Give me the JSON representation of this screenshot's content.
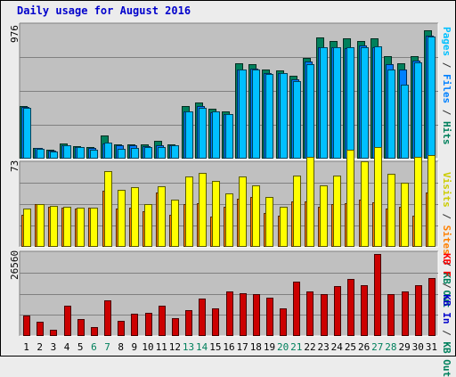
{
  "chart_data": {
    "type": "bar",
    "title": "Daily usage for August 2016",
    "categories": [
      "1",
      "2",
      "3",
      "4",
      "5",
      "6",
      "7",
      "8",
      "9",
      "10",
      "11",
      "12",
      "13",
      "14",
      "15",
      "16",
      "17",
      "18",
      "19",
      "20",
      "21",
      "22",
      "23",
      "24",
      "25",
      "26",
      "27",
      "28",
      "29",
      "30",
      "31"
    ],
    "weekend_days": [
      "6",
      "7",
      "13",
      "14",
      "20",
      "21",
      "27",
      "28"
    ],
    "panels": [
      {
        "name": "hits-files-pages",
        "ymax": 976,
        "ymax_label": "976",
        "legend": [
          {
            "text": "Pages",
            "color": "#00c0ff"
          },
          {
            "text": " / ",
            "color": "#333333"
          },
          {
            "text": "Files",
            "color": "#0080ff"
          },
          {
            "text": " / ",
            "color": "#333333"
          },
          {
            "text": "Hits",
            "color": "#00805c"
          }
        ],
        "series": [
          {
            "name": "Hits",
            "color": "#00805c",
            "values": [
              383,
              72,
              58,
              105,
              86,
              78,
              165,
              102,
              102,
              102,
              122,
              102,
              382,
              407,
              362,
              340,
              696,
              692,
              651,
              645,
              604,
              738,
              887,
              865,
              883,
              865,
              886,
              752,
              699,
              751,
              946
            ]
          },
          {
            "name": "Files",
            "color": "#0080ff",
            "values": [
              375,
              70,
              55,
              90,
              80,
              70,
              105,
              95,
              90,
              85,
              95,
              90,
              340,
              380,
              335,
              320,
              655,
              660,
              625,
              625,
              580,
              715,
              820,
              820,
              810,
              830,
              820,
              690,
              655,
              720,
              901
            ]
          },
          {
            "name": "Pages",
            "color": "#00c0ff",
            "values": [
              367,
              67,
              49,
              93,
              76,
              58,
              110,
              69,
              70,
              80,
              80,
              95,
              345,
              370,
              340,
              320,
              655,
              655,
              620,
              624,
              567,
              694,
              821,
              818,
              817,
              816,
              823,
              651,
              542,
              704,
              895
            ]
          }
        ]
      },
      {
        "name": "visits-sites",
        "ymax": 73,
        "ymax_label": "73",
        "legend": [
          {
            "text": "Visits",
            "color": "#ffff00"
          },
          {
            "text": " / ",
            "color": "#333333"
          },
          {
            "text": "Sites",
            "color": "#ff8000"
          },
          {
            "text": " / ",
            "color": "#333333"
          },
          {
            "text": "KB Out",
            "color": "#00805c"
          }
        ],
        "series": [
          {
            "name": "Sites",
            "color": "#ff8000",
            "values": [
              28,
              37,
              35,
              34,
              33,
              34,
              49,
              33,
              34,
              31,
              48,
              28,
              37,
              38,
              26,
              35,
              42,
              44,
              29,
              27,
              40,
              40,
              35,
              37,
              38,
              41,
              39,
              33,
              35,
              27,
              48
            ]
          },
          {
            "name": "Visits",
            "color": "#ffff00",
            "values": [
              33,
              37,
              36,
              35,
              34,
              34,
              67,
              50,
              52,
              37,
              53,
              41,
              62,
              65,
              58,
              47,
              62,
              54,
              44,
              35,
              63,
              79,
              54,
              63,
              86,
              75,
              88,
              64,
              56,
              79,
              81
            ]
          }
        ]
      },
      {
        "name": "kbin-kbout",
        "ymax": 26560,
        "ymax_label": "26560",
        "legend": [
          {
            "text": "KB F",
            "color": "#ff0000"
          },
          {
            "text": " / ",
            "color": "#333333"
          },
          {
            "text": "KB In",
            "color": "#0000cc"
          },
          {
            "text": " / ",
            "color": "#333333"
          },
          {
            "text": "KB Out",
            "color": "#00805c"
          }
        ],
        "series": [
          {
            "name": "KB F",
            "color": "#cc0000",
            "values": [
              6400,
              4400,
              1770,
              9740,
              5300,
              2680,
              11300,
              4700,
              6940,
              7220,
              9710,
              5450,
              8250,
              12000,
              8640,
              14350,
              13700,
              13330,
              12200,
              8700,
              17550,
              14400,
              13300,
              16150,
              18500,
              16400,
              26560,
              13350,
              14240,
              16280,
              18770
            ]
          }
        ]
      }
    ],
    "colors": {
      "panel_bg": "#c0c0c0",
      "page_bg": "#ececec",
      "gridline": "#808080",
      "title": "#0000cc",
      "weekend_label": "#00805c",
      "weekday_label": "#000000"
    }
  }
}
